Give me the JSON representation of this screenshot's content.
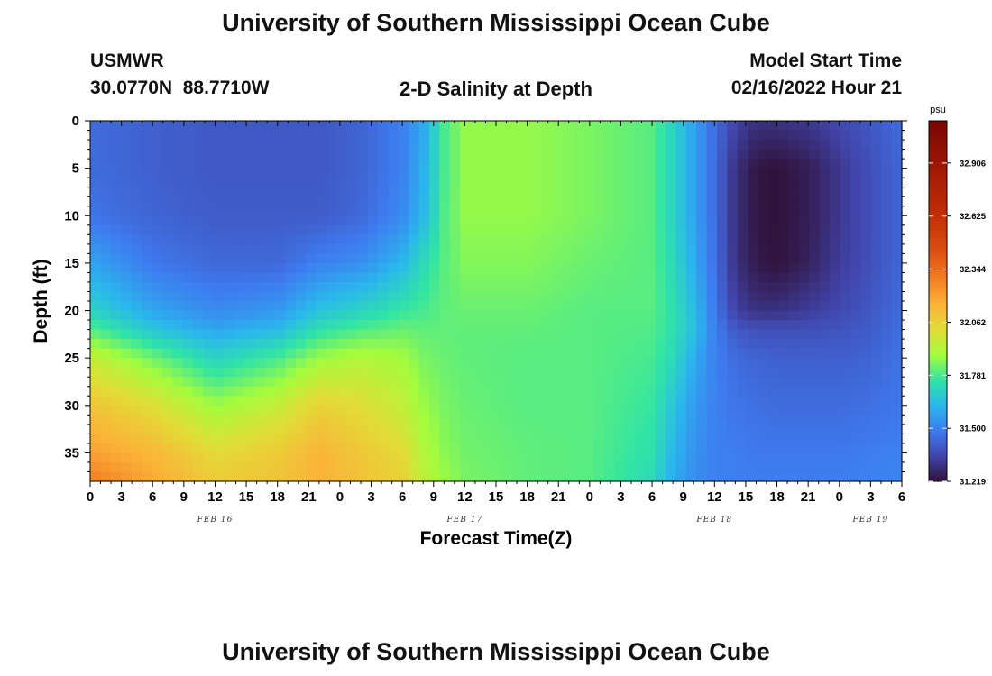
{
  "header": {
    "title": "University of Southern Mississippi Ocean Cube",
    "station": "USMWR",
    "coords": "30.0770N  88.7710W",
    "subtitle": "2-D Salinity at Depth",
    "model_label": "Model Start Time",
    "model_time": "02/16/2022 Hour 21"
  },
  "footer": {
    "title": "University of Southern Mississippi Ocean Cube"
  },
  "chart_data": {
    "type": "heatmap",
    "title": "2-D Salinity at Depth",
    "xlabel": "Forecast Time(Z)",
    "ylabel": "Depth (ft)",
    "x_range_hours": [
      0,
      78
    ],
    "y_range_ft": [
      0,
      38
    ],
    "x_tick_labels": [
      "0",
      "3",
      "6",
      "9",
      "12",
      "15",
      "18",
      "21",
      "0",
      "3",
      "6",
      "9",
      "12",
      "15",
      "18",
      "21",
      "0",
      "3",
      "6",
      "9",
      "12",
      "15",
      "18",
      "21",
      "0",
      "3",
      "6"
    ],
    "x_day_labels": [
      {
        "hour": 12,
        "label": "FEB 16"
      },
      {
        "hour": 36,
        "label": "FEB 17"
      },
      {
        "hour": 60,
        "label": "FEB 18"
      },
      {
        "hour": 75,
        "label": "FEB 19"
      }
    ],
    "y_ticks": [
      0,
      5,
      10,
      15,
      20,
      25,
      30,
      35
    ],
    "colorbar": {
      "unit": "psu",
      "min": 31.219,
      "max": 33.13,
      "ticks": [
        "32.906",
        "32.625",
        "32.344",
        "32.062",
        "31.781",
        "31.500",
        "31.219"
      ]
    },
    "time_hours": [
      0,
      6,
      12,
      18,
      22,
      26,
      30,
      32,
      34,
      36,
      42,
      48,
      54,
      56,
      58,
      60,
      62,
      64,
      66,
      69,
      72,
      75,
      78
    ],
    "depths_ft": [
      0,
      5,
      10,
      15,
      20,
      22,
      25,
      30,
      35,
      38
    ],
    "salinity_psu": [
      [
        31.45,
        31.42,
        31.4,
        31.4,
        31.4,
        31.43,
        31.5,
        31.58,
        31.78,
        31.87,
        31.87,
        31.84,
        31.8,
        31.7,
        31.58,
        31.45,
        31.35,
        31.3,
        31.3,
        31.32,
        31.36,
        31.4,
        31.45
      ],
      [
        31.45,
        31.42,
        31.4,
        31.4,
        31.4,
        31.43,
        31.5,
        31.6,
        31.78,
        31.87,
        31.87,
        31.84,
        31.8,
        31.7,
        31.58,
        31.45,
        31.3,
        31.23,
        31.22,
        31.25,
        31.32,
        31.38,
        31.44
      ],
      [
        31.47,
        31.43,
        31.41,
        31.41,
        31.41,
        31.44,
        31.52,
        31.62,
        31.79,
        31.87,
        31.87,
        31.84,
        31.8,
        31.7,
        31.58,
        31.45,
        31.3,
        31.23,
        31.22,
        31.25,
        31.32,
        31.38,
        31.44
      ],
      [
        31.58,
        31.48,
        31.44,
        31.44,
        31.5,
        31.53,
        31.62,
        31.72,
        31.8,
        31.85,
        31.85,
        31.82,
        31.8,
        31.72,
        31.6,
        31.46,
        31.3,
        31.24,
        31.22,
        31.26,
        31.33,
        31.38,
        31.44
      ],
      [
        31.7,
        31.58,
        31.52,
        31.55,
        31.65,
        31.7,
        31.76,
        31.78,
        31.81,
        31.82,
        31.82,
        31.8,
        31.8,
        31.74,
        31.64,
        31.48,
        31.34,
        31.3,
        31.3,
        31.33,
        31.36,
        31.4,
        31.45
      ],
      [
        31.8,
        31.66,
        31.58,
        31.63,
        31.74,
        31.79,
        31.82,
        31.81,
        31.81,
        31.81,
        31.81,
        31.8,
        31.79,
        31.74,
        31.65,
        31.5,
        31.4,
        31.38,
        31.38,
        31.38,
        31.39,
        31.41,
        31.46
      ],
      [
        31.96,
        31.83,
        31.7,
        31.78,
        31.88,
        31.92,
        31.89,
        31.84,
        31.82,
        31.81,
        31.8,
        31.8,
        31.78,
        31.72,
        31.6,
        31.5,
        31.45,
        31.43,
        31.42,
        31.42,
        31.42,
        31.43,
        31.47
      ],
      [
        32.1,
        32.02,
        31.88,
        31.96,
        32.06,
        32.02,
        31.95,
        31.88,
        31.84,
        31.82,
        31.8,
        31.8,
        31.76,
        31.66,
        31.56,
        31.5,
        31.47,
        31.46,
        31.45,
        31.45,
        31.45,
        31.46,
        31.48
      ],
      [
        32.2,
        32.14,
        32.03,
        32.08,
        32.15,
        32.09,
        32.03,
        31.92,
        31.86,
        31.83,
        31.81,
        31.8,
        31.74,
        31.62,
        31.54,
        31.5,
        31.49,
        31.48,
        31.48,
        31.48,
        31.48,
        31.49,
        31.5
      ],
      [
        32.3,
        32.18,
        32.08,
        32.1,
        32.16,
        32.11,
        32.06,
        31.95,
        31.88,
        31.84,
        31.81,
        31.8,
        31.72,
        31.6,
        31.53,
        31.5,
        31.5,
        31.49,
        31.49,
        31.49,
        31.49,
        31.5,
        31.51
      ]
    ]
  }
}
